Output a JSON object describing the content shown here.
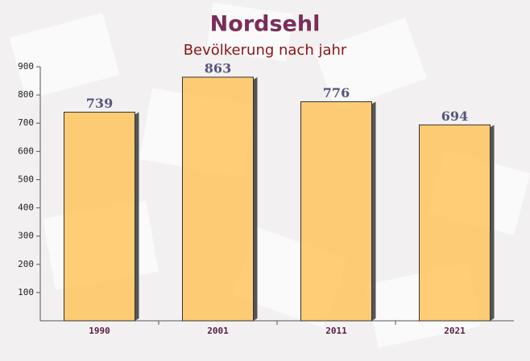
{
  "chart_data": {
    "type": "bar",
    "title": "Nordsehl",
    "subtitle": "Bevölkerung nach jahr",
    "categories": [
      "1990",
      "2001",
      "2011",
      "2021"
    ],
    "values": [
      739,
      863,
      776,
      694
    ],
    "color": "#ffc45e",
    "ylim": [
      0,
      900
    ],
    "yticks": [
      100,
      200,
      300,
      400,
      500,
      600,
      700,
      800,
      900
    ]
  }
}
